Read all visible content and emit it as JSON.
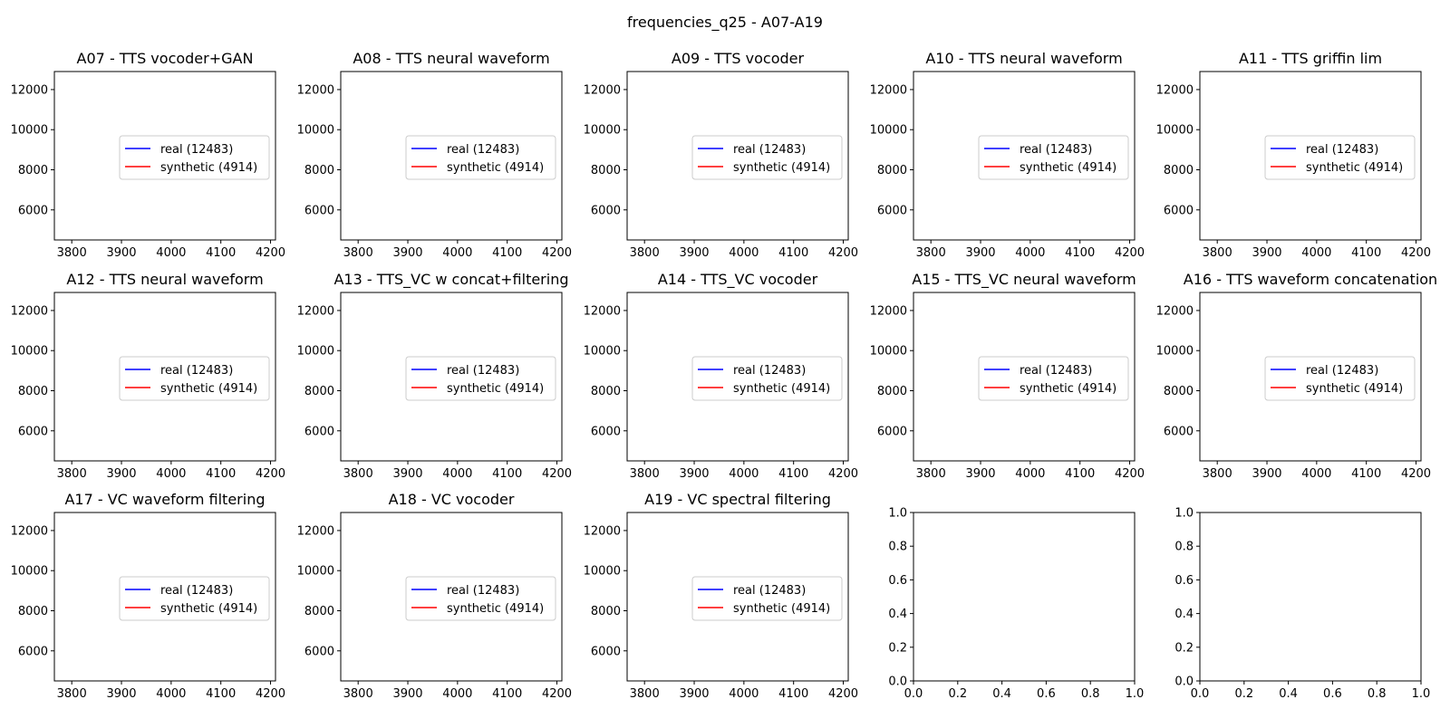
{
  "figure": {
    "title": "frequencies_q25 - A07-A19"
  },
  "chart_data": [
    {
      "id": "A07",
      "type": "line",
      "title": "A07 - TTS vocoder+GAN",
      "xlim": [
        3765,
        4210
      ],
      "ylim": [
        4500,
        12900
      ],
      "xticks": [
        3800,
        3900,
        4000,
        4100,
        4200
      ],
      "yticks": [
        6000,
        8000,
        10000,
        12000
      ],
      "legend": {
        "placement": "center-right",
        "entries": [
          {
            "label": "real (12483)",
            "color": "#0000ff"
          },
          {
            "label": "synthetic (4914)",
            "color": "#ff0000"
          }
        ]
      },
      "series": []
    },
    {
      "id": "A08",
      "type": "line",
      "title": "A08 - TTS neural waveform",
      "xlim": [
        3765,
        4210
      ],
      "ylim": [
        4500,
        12900
      ],
      "xticks": [
        3800,
        3900,
        4000,
        4100,
        4200
      ],
      "yticks": [
        6000,
        8000,
        10000,
        12000
      ],
      "legend": {
        "placement": "center-right",
        "entries": [
          {
            "label": "real (12483)",
            "color": "#0000ff"
          },
          {
            "label": "synthetic (4914)",
            "color": "#ff0000"
          }
        ]
      },
      "series": []
    },
    {
      "id": "A09",
      "type": "line",
      "title": "A09 - TTS vocoder",
      "xlim": [
        3765,
        4210
      ],
      "ylim": [
        4500,
        12900
      ],
      "xticks": [
        3800,
        3900,
        4000,
        4100,
        4200
      ],
      "yticks": [
        6000,
        8000,
        10000,
        12000
      ],
      "legend": {
        "placement": "center-right",
        "entries": [
          {
            "label": "real (12483)",
            "color": "#0000ff"
          },
          {
            "label": "synthetic (4914)",
            "color": "#ff0000"
          }
        ]
      },
      "series": []
    },
    {
      "id": "A10",
      "type": "line",
      "title": "A10 - TTS neural waveform",
      "xlim": [
        3765,
        4210
      ],
      "ylim": [
        4500,
        12900
      ],
      "xticks": [
        3800,
        3900,
        4000,
        4100,
        4200
      ],
      "yticks": [
        6000,
        8000,
        10000,
        12000
      ],
      "legend": {
        "placement": "center-right",
        "entries": [
          {
            "label": "real (12483)",
            "color": "#0000ff"
          },
          {
            "label": "synthetic (4914)",
            "color": "#ff0000"
          }
        ]
      },
      "series": []
    },
    {
      "id": "A11",
      "type": "line",
      "title": "A11 - TTS griffin lim",
      "xlim": [
        3765,
        4210
      ],
      "ylim": [
        4500,
        12900
      ],
      "xticks": [
        3800,
        3900,
        4000,
        4100,
        4200
      ],
      "yticks": [
        6000,
        8000,
        10000,
        12000
      ],
      "legend": {
        "placement": "center-right",
        "entries": [
          {
            "label": "real (12483)",
            "color": "#0000ff"
          },
          {
            "label": "synthetic (4914)",
            "color": "#ff0000"
          }
        ]
      },
      "series": []
    },
    {
      "id": "A12",
      "type": "line",
      "title": "A12 - TTS neural waveform",
      "xlim": [
        3765,
        4210
      ],
      "ylim": [
        4500,
        12900
      ],
      "xticks": [
        3800,
        3900,
        4000,
        4100,
        4200
      ],
      "yticks": [
        6000,
        8000,
        10000,
        12000
      ],
      "legend": {
        "placement": "center-right",
        "entries": [
          {
            "label": "real (12483)",
            "color": "#0000ff"
          },
          {
            "label": "synthetic (4914)",
            "color": "#ff0000"
          }
        ]
      },
      "series": []
    },
    {
      "id": "A13",
      "type": "line",
      "title": "A13 - TTS_VC w concat+filtering",
      "xlim": [
        3765,
        4210
      ],
      "ylim": [
        4500,
        12900
      ],
      "xticks": [
        3800,
        3900,
        4000,
        4100,
        4200
      ],
      "yticks": [
        6000,
        8000,
        10000,
        12000
      ],
      "legend": {
        "placement": "center-right",
        "entries": [
          {
            "label": "real (12483)",
            "color": "#0000ff"
          },
          {
            "label": "synthetic (4914)",
            "color": "#ff0000"
          }
        ]
      },
      "series": []
    },
    {
      "id": "A14",
      "type": "line",
      "title": "A14 - TTS_VC vocoder",
      "xlim": [
        3765,
        4210
      ],
      "ylim": [
        4500,
        12900
      ],
      "xticks": [
        3800,
        3900,
        4000,
        4100,
        4200
      ],
      "yticks": [
        6000,
        8000,
        10000,
        12000
      ],
      "legend": {
        "placement": "center-right",
        "entries": [
          {
            "label": "real (12483)",
            "color": "#0000ff"
          },
          {
            "label": "synthetic (4914)",
            "color": "#ff0000"
          }
        ]
      },
      "series": []
    },
    {
      "id": "A15",
      "type": "line",
      "title": "A15 - TTS_VC neural waveform",
      "xlim": [
        3765,
        4210
      ],
      "ylim": [
        4500,
        12900
      ],
      "xticks": [
        3800,
        3900,
        4000,
        4100,
        4200
      ],
      "yticks": [
        6000,
        8000,
        10000,
        12000
      ],
      "legend": {
        "placement": "center-right",
        "entries": [
          {
            "label": "real (12483)",
            "color": "#0000ff"
          },
          {
            "label": "synthetic (4914)",
            "color": "#ff0000"
          }
        ]
      },
      "series": []
    },
    {
      "id": "A16",
      "type": "line",
      "title": "A16 - TTS waveform concatenation",
      "xlim": [
        3765,
        4210
      ],
      "ylim": [
        4500,
        12900
      ],
      "xticks": [
        3800,
        3900,
        4000,
        4100,
        4200
      ],
      "yticks": [
        6000,
        8000,
        10000,
        12000
      ],
      "legend": {
        "placement": "center-right",
        "entries": [
          {
            "label": "real (12483)",
            "color": "#0000ff"
          },
          {
            "label": "synthetic (4914)",
            "color": "#ff0000"
          }
        ]
      },
      "series": []
    },
    {
      "id": "A17",
      "type": "line",
      "title": "A17 - VC waveform filtering",
      "xlim": [
        3765,
        4210
      ],
      "ylim": [
        4500,
        12900
      ],
      "xticks": [
        3800,
        3900,
        4000,
        4100,
        4200
      ],
      "yticks": [
        6000,
        8000,
        10000,
        12000
      ],
      "legend": {
        "placement": "center-right",
        "entries": [
          {
            "label": "real (12483)",
            "color": "#0000ff"
          },
          {
            "label": "synthetic (4914)",
            "color": "#ff0000"
          }
        ]
      },
      "series": []
    },
    {
      "id": "A18",
      "type": "line",
      "title": "A18 - VC vocoder",
      "xlim": [
        3765,
        4210
      ],
      "ylim": [
        4500,
        12900
      ],
      "xticks": [
        3800,
        3900,
        4000,
        4100,
        4200
      ],
      "yticks": [
        6000,
        8000,
        10000,
        12000
      ],
      "legend": {
        "placement": "center-right",
        "entries": [
          {
            "label": "real (12483)",
            "color": "#0000ff"
          },
          {
            "label": "synthetic (4914)",
            "color": "#ff0000"
          }
        ]
      },
      "series": []
    },
    {
      "id": "A19",
      "type": "line",
      "title": "A19 - VC spectral filtering",
      "xlim": [
        3765,
        4210
      ],
      "ylim": [
        4500,
        12900
      ],
      "xticks": [
        3800,
        3900,
        4000,
        4100,
        4200
      ],
      "yticks": [
        6000,
        8000,
        10000,
        12000
      ],
      "legend": {
        "placement": "center-right",
        "entries": [
          {
            "label": "real (12483)",
            "color": "#0000ff"
          },
          {
            "label": "synthetic (4914)",
            "color": "#ff0000"
          }
        ]
      },
      "series": []
    },
    {
      "id": "empty-1",
      "type": "line",
      "title": "",
      "xlim": [
        0,
        1
      ],
      "ylim": [
        0,
        1
      ],
      "xticks": [
        "0.0",
        "0.2",
        "0.4",
        "0.6",
        "0.8",
        "1.0"
      ],
      "yticks": [
        "0.0",
        "0.2",
        "0.4",
        "0.6",
        "0.8",
        "1.0"
      ],
      "legend": null,
      "series": []
    },
    {
      "id": "empty-2",
      "type": "line",
      "title": "",
      "xlim": [
        0,
        1
      ],
      "ylim": [
        0,
        1
      ],
      "xticks": [
        "0.0",
        "0.2",
        "0.4",
        "0.6",
        "0.8",
        "1.0"
      ],
      "yticks": [
        "0.0",
        "0.2",
        "0.4",
        "0.6",
        "0.8",
        "1.0"
      ],
      "legend": null,
      "series": []
    }
  ]
}
